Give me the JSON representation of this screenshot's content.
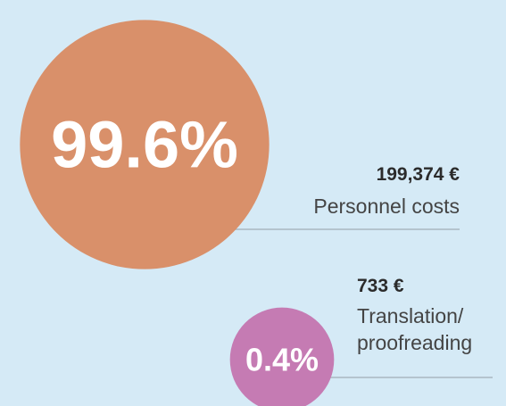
{
  "chart_data": {
    "type": "bubble",
    "categories": [
      "Personnel costs",
      "Translation/ proofreading"
    ],
    "values": [
      99.6,
      0.4
    ],
    "value_labels": [
      "99.6%",
      "0.4%"
    ],
    "amounts": [
      199374,
      733
    ],
    "amount_labels": [
      "199,374 €",
      "733 €"
    ],
    "colors": [
      "#d9906a",
      "#c57bb3"
    ]
  }
}
